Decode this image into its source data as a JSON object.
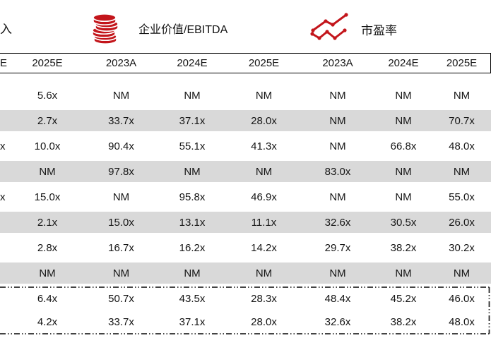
{
  "colors": {
    "accent_red": "#c3151b",
    "row_band_gray": "#d9d9d9",
    "header_border": "#000000",
    "text": "#151515"
  },
  "legend": {
    "left_partial_label": "入",
    "ev_ebitda": {
      "icon": "coins-icon",
      "label": "企业价值/EBITDA"
    },
    "pe": {
      "icon": "line-chart-icon",
      "label": "市盈率"
    }
  },
  "table": {
    "header": [
      "E",
      "2025E",
      "2023A",
      "2024E",
      "2025E",
      "2023A",
      "2024E",
      "2025E"
    ],
    "rows": [
      {
        "shaded": false,
        "cells": [
          "",
          "5.6x",
          "NM",
          "NM",
          "NM",
          "NM",
          "NM",
          "NM"
        ]
      },
      {
        "shaded": true,
        "cells": [
          "",
          "2.7x",
          "33.7x",
          "37.1x",
          "28.0x",
          "NM",
          "NM",
          "70.7x"
        ]
      },
      {
        "shaded": false,
        "cells": [
          "x",
          "10.0x",
          "90.4x",
          "55.1x",
          "41.3x",
          "NM",
          "66.8x",
          "48.0x"
        ]
      },
      {
        "shaded": true,
        "cells": [
          "",
          "NM",
          "97.8x",
          "NM",
          "NM",
          "83.0x",
          "NM",
          "NM"
        ]
      },
      {
        "shaded": false,
        "cells": [
          "x",
          "15.0x",
          "NM",
          "95.8x",
          "46.9x",
          "NM",
          "NM",
          "55.0x"
        ]
      },
      {
        "shaded": true,
        "cells": [
          "",
          "2.1x",
          "15.0x",
          "13.1x",
          "11.1x",
          "32.6x",
          "30.5x",
          "26.0x"
        ]
      },
      {
        "shaded": false,
        "cells": [
          "",
          "2.8x",
          "16.7x",
          "16.2x",
          "14.2x",
          "29.7x",
          "38.2x",
          "30.2x"
        ]
      },
      {
        "shaded": true,
        "cells": [
          "",
          "NM",
          "NM",
          "NM",
          "NM",
          "NM",
          "NM",
          "NM"
        ]
      }
    ],
    "summary_rows": [
      {
        "cells": [
          "",
          "6.4x",
          "50.7x",
          "43.5x",
          "28.3x",
          "48.4x",
          "45.2x",
          "46.0x"
        ]
      },
      {
        "cells": [
          "",
          "4.2x",
          "33.7x",
          "37.1x",
          "28.0x",
          "32.6x",
          "38.2x",
          "48.0x"
        ]
      }
    ]
  }
}
